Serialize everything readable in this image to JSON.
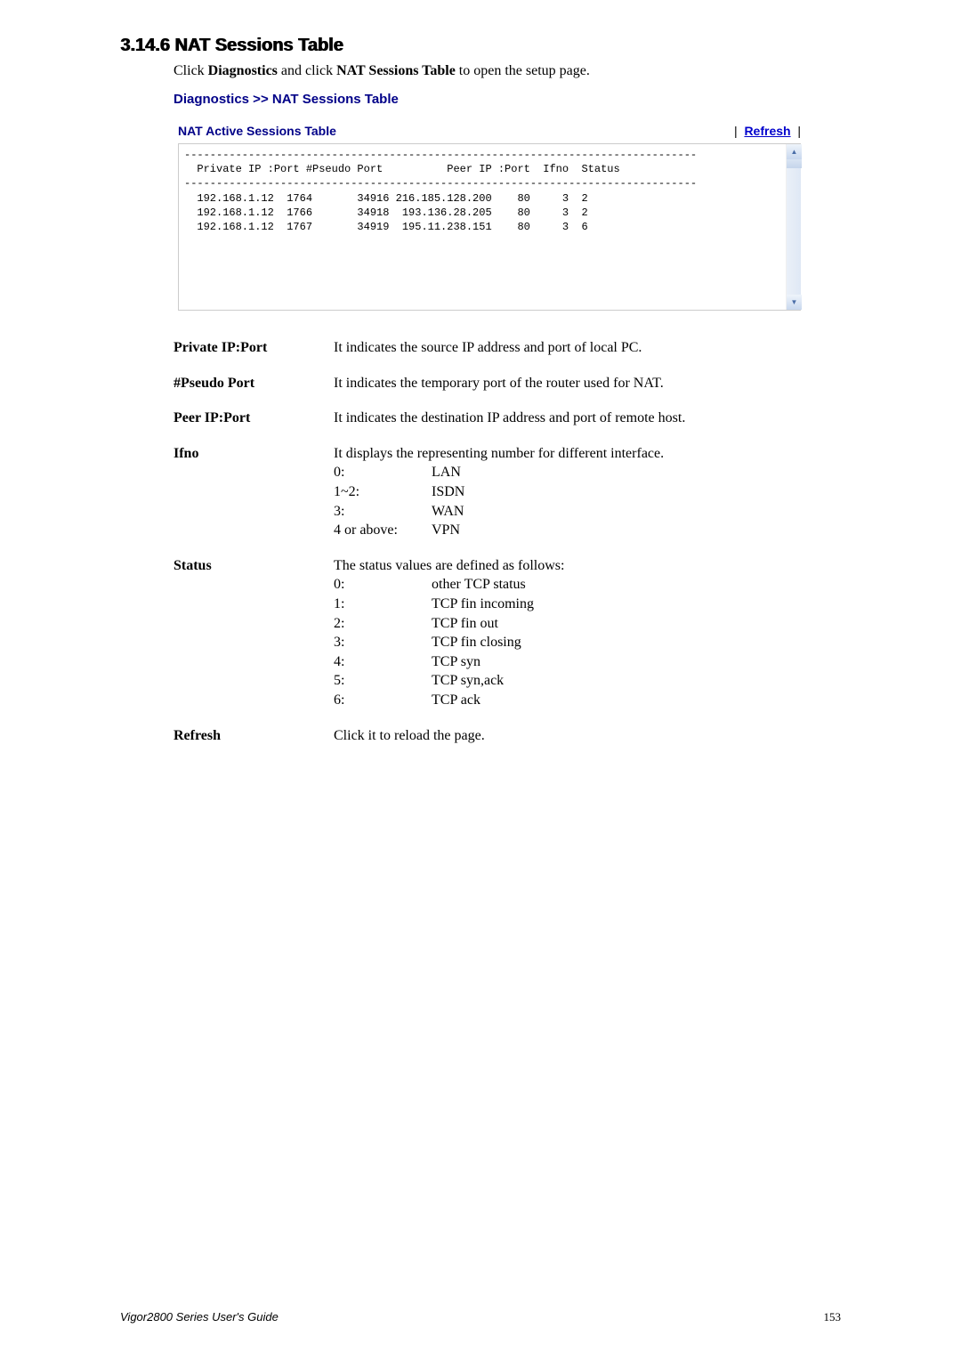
{
  "heading": "3.14.6 NAT Sessions Table",
  "intro": {
    "pre": "Click ",
    "b1": "Diagnostics",
    "mid": " and click ",
    "b2": "NAT Sessions Table",
    "post": " to open the setup page."
  },
  "breadcrumb": {
    "text": "Diagnostics >> NAT Sessions Table",
    "color": "#000088"
  },
  "box": {
    "title": "NAT Active Sessions Table",
    "refresh_label": "Refresh",
    "header_line": "  Private IP :Port #Pseudo Port          Peer IP :Port  Ifno  Status",
    "rows": [
      "  192.168.1.12  1764       34916 216.185.128.200    80     3  2",
      "  192.168.1.12  1766       34918  193.136.28.205    80     3  2",
      "  192.168.1.12  1767       34919  195.11.238.151    80     3  6"
    ],
    "box_height_lines": 6
  },
  "definitions": [
    {
      "term": "Private IP:Port",
      "lines": [
        "It indicates the source IP address and port of local PC."
      ]
    },
    {
      "term": "#Pseudo Port",
      "lines": [
        "It indicates the temporary port of the router used for NAT."
      ]
    },
    {
      "term": "Peer IP:Port",
      "lines": [
        "It indicates the destination IP address and port of remote host."
      ]
    },
    {
      "term": "Ifno",
      "lines": [
        "It displays the representing number for different interface."
      ],
      "subrows": [
        {
          "c1": "0:",
          "c2": "LAN"
        },
        {
          "c1": "1~2:",
          "c2": "ISDN"
        },
        {
          "c1": "3:",
          "c2": "WAN"
        },
        {
          "c1": "4 or above:",
          "c2": "VPN"
        }
      ]
    },
    {
      "term": "Status",
      "lines": [
        "The status values are defined as follows:"
      ],
      "subrows": [
        {
          "c1": "0:",
          "c2": "other TCP status"
        },
        {
          "c1": "1:",
          "c2": "TCP fin incoming"
        },
        {
          "c1": "2:",
          "c2": "TCP fin out"
        },
        {
          "c1": "3:",
          "c2": "TCP fin closing"
        },
        {
          "c1": "4:",
          "c2": "TCP syn"
        },
        {
          "c1": "5:",
          "c2": "TCP syn,ack"
        },
        {
          "c1": "6:",
          "c2": "TCP ack"
        }
      ]
    },
    {
      "term": "Refresh",
      "lines": [
        "Click it to reload the page."
      ]
    }
  ],
  "footer": {
    "guide": "Vigor2800 Series User's Guide",
    "page": "153"
  }
}
